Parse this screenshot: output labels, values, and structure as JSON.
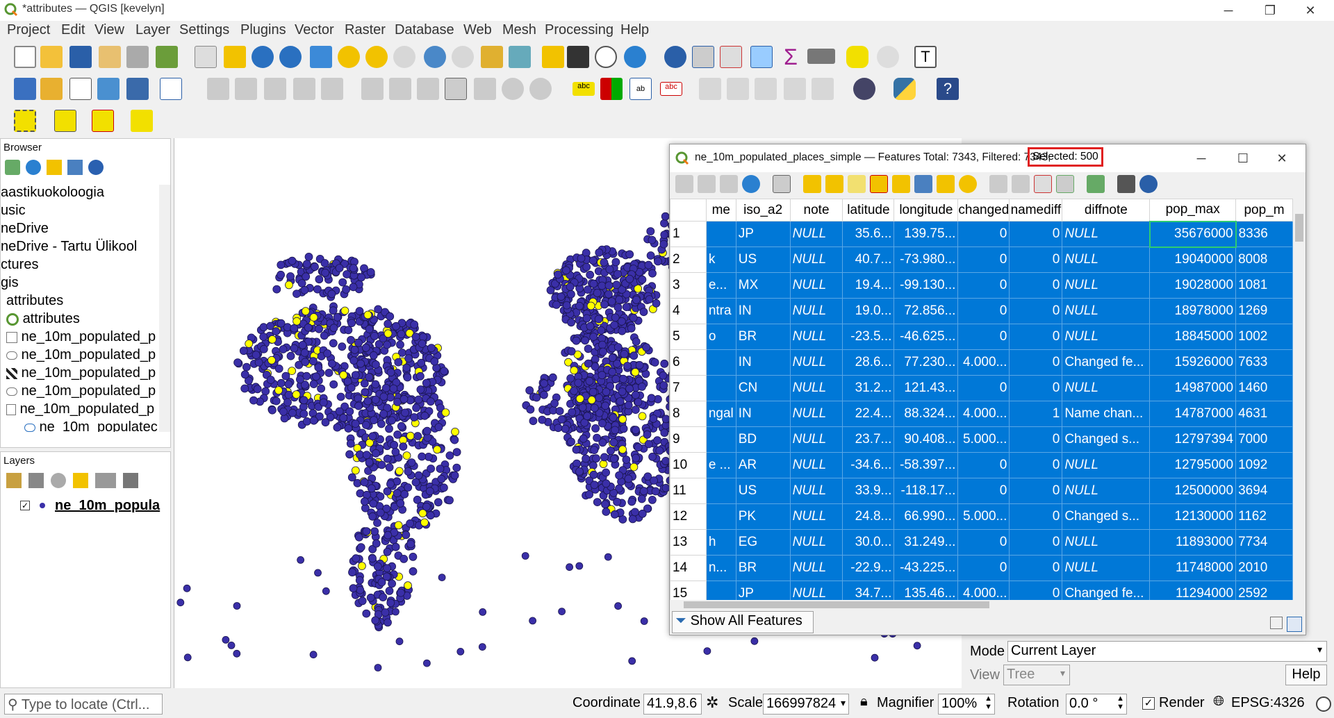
{
  "window": {
    "title": "*attributes — QGIS [kevelyn]"
  },
  "menu": [
    "Project",
    "Edit",
    "View",
    "Layer",
    "Settings",
    "Plugins",
    "Vector",
    "Raster",
    "Database",
    "Web",
    "Mesh",
    "Processing",
    "Help"
  ],
  "browser": {
    "title": "Browser",
    "items": [
      "aastikuokoloogia",
      "usic",
      "neDrive",
      "neDrive - Tartu Ülikool",
      "ctures",
      "gis",
      "attributes",
      "attributes",
      "ne_10m_populated_p",
      "ne_10m_populated_p",
      "ne_10m_populated_p",
      "ne_10m_populated_p",
      "ne_10m_populated_p",
      "ne_10m_populatec"
    ]
  },
  "layers": {
    "title": "Layers",
    "layer_name": "ne_10m_popula"
  },
  "attr": {
    "title": "ne_10m_populated_places_simple — Features Total: 7343, Filtered: 7343,",
    "selected": "Selected: 500",
    "columns": [
      "me",
      "iso_a2",
      "note",
      "latitude",
      "longitude",
      "changed",
      "namediff",
      "diffnote",
      "pop_max",
      "pop_m"
    ],
    "rows": [
      [
        "1",
        "",
        "JP",
        "NULL",
        "35.6...",
        "139.75...",
        "0",
        "0",
        "NULL",
        "35676000",
        "8336"
      ],
      [
        "2",
        "k",
        "US",
        "NULL",
        "40.7...",
        "-73.980...",
        "0",
        "0",
        "NULL",
        "19040000",
        "8008"
      ],
      [
        "3",
        "e...",
        "MX",
        "NULL",
        "19.4...",
        "-99.130...",
        "0",
        "0",
        "NULL",
        "19028000",
        "1081"
      ],
      [
        "4",
        "ntra",
        "IN",
        "NULL",
        "19.0...",
        "72.856...",
        "0",
        "0",
        "NULL",
        "18978000",
        "1269"
      ],
      [
        "5",
        "o",
        "BR",
        "NULL",
        "-23.5...",
        "-46.625...",
        "0",
        "0",
        "NULL",
        "18845000",
        "1002"
      ],
      [
        "6",
        "",
        "IN",
        "NULL",
        "28.6...",
        "77.230...",
        "4.000...",
        "0",
        "Changed fe...",
        "15926000",
        "7633"
      ],
      [
        "7",
        "",
        "CN",
        "NULL",
        "31.2...",
        "121.43...",
        "0",
        "0",
        "NULL",
        "14987000",
        "1460"
      ],
      [
        "8",
        "ngal",
        "IN",
        "NULL",
        "22.4...",
        "88.324...",
        "4.000...",
        "1",
        "Name chan...",
        "14787000",
        "4631"
      ],
      [
        "9",
        "",
        "BD",
        "NULL",
        "23.7...",
        "90.408...",
        "5.000...",
        "0",
        "Changed s...",
        "12797394",
        "7000"
      ],
      [
        "10",
        "e ...",
        "AR",
        "NULL",
        "-34.6...",
        "-58.397...",
        "0",
        "0",
        "NULL",
        "12795000",
        "1092"
      ],
      [
        "11",
        "",
        "US",
        "NULL",
        "33.9...",
        "-118.17...",
        "0",
        "0",
        "NULL",
        "12500000",
        "3694"
      ],
      [
        "12",
        "",
        "PK",
        "NULL",
        "24.8...",
        "66.990...",
        "5.000...",
        "0",
        "Changed s...",
        "12130000",
        "1162"
      ],
      [
        "13",
        "h",
        "EG",
        "NULL",
        "30.0...",
        "31.249...",
        "0",
        "0",
        "NULL",
        "11893000",
        "7734"
      ],
      [
        "14",
        "n...",
        "BR",
        "NULL",
        "-22.9...",
        "-43.225...",
        "0",
        "0",
        "NULL",
        "11748000",
        "2010"
      ],
      [
        "15",
        "",
        "JP",
        "NULL",
        "34.7...",
        "135.46...",
        "4.000...",
        "0",
        "Changed fe...",
        "11294000",
        "2592"
      ]
    ],
    "show_all": "Show All Features"
  },
  "identify": {
    "mode_label": "Mode",
    "mode_value": "Current Layer",
    "view_label": "View",
    "view_value": "Tree",
    "help": "Help"
  },
  "status": {
    "locate_placeholder": "Type to locate (Ctrl...",
    "coordinate_label": "Coordinate",
    "coordinate_value": "41.9,8.6",
    "scale_label": "Scale",
    "scale_value": "166997824",
    "magnifier_label": "Magnifier",
    "magnifier_value": "100%",
    "rotation_label": "Rotation",
    "rotation_value": "0.0 °",
    "render_label": "Render",
    "crs": "EPSG:4326"
  },
  "colors": {
    "selection": "#0078d7",
    "point_fill": "#3a2fa8",
    "selected_point": "#ffff00",
    "highlight_box": "#e02020"
  }
}
